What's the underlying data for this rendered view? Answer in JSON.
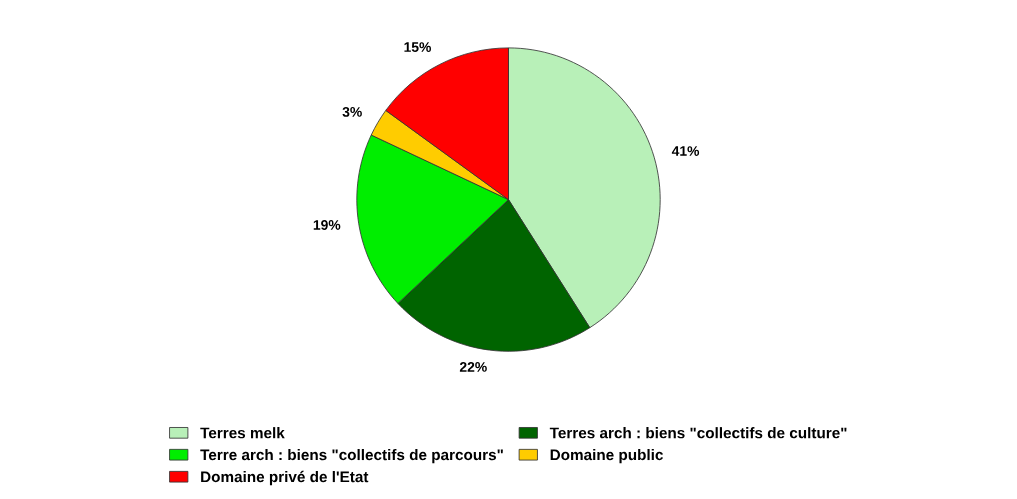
{
  "chart_data": {
    "type": "pie",
    "categories": [
      "Terres melk",
      "Terres arch : biens \"collectifs de culture\"",
      "Terre arch : biens \"collectifs de parcours\"",
      "Domaine public",
      "Domaine privé de l'Etat"
    ],
    "values": [
      41,
      22,
      19,
      3,
      15
    ],
    "colors": [
      "#b8f0b8",
      "#006400",
      "#00ee00",
      "#ffcc00",
      "#ff0000"
    ],
    "value_labels": [
      "41%",
      "22%",
      "19%",
      "3%",
      "15%"
    ],
    "legend": "bottom"
  }
}
